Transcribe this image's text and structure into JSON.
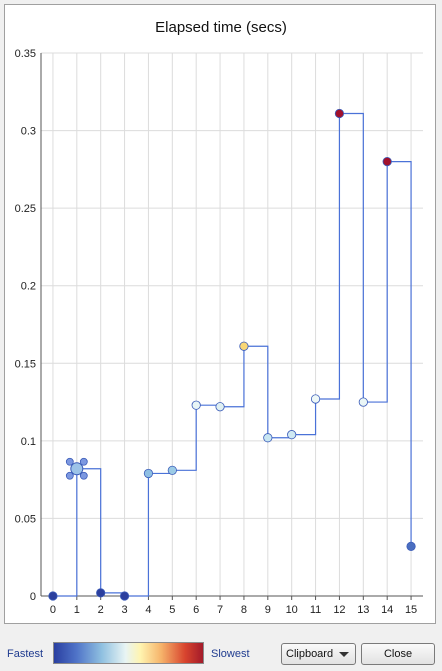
{
  "chart_data": {
    "type": "line",
    "title": "Elapsed time (secs)",
    "xlabel": "",
    "ylabel": "",
    "xlim": [
      -0.5,
      15.5
    ],
    "ylim": [
      0,
      0.35
    ],
    "x_ticks": [
      0,
      1,
      2,
      3,
      4,
      5,
      6,
      7,
      8,
      9,
      10,
      11,
      12,
      13,
      14,
      15
    ],
    "y_ticks": [
      0,
      0.05,
      0.1,
      0.15,
      0.2,
      0.25,
      0.3,
      0.35
    ],
    "y_tick_labels": [
      "0",
      "0.05",
      "0.1",
      "0.15",
      "0.2",
      "0.25",
      "0.3",
      "0.35"
    ],
    "grid": true,
    "line_style": "step",
    "series_color": "#4a72d8",
    "points": [
      {
        "x": 0,
        "y": 0.0,
        "color": "#2b3f9e"
      },
      {
        "x": 1,
        "y": 0.082,
        "color": "#9cc3e8",
        "selected": true
      },
      {
        "x": 2,
        "y": 0.002,
        "color": "#2b3f9e"
      },
      {
        "x": 3,
        "y": 0.0,
        "color": "#2b3f9e"
      },
      {
        "x": 4,
        "y": 0.079,
        "color": "#8fbfe3"
      },
      {
        "x": 5,
        "y": 0.081,
        "color": "#9ccbe6"
      },
      {
        "x": 6,
        "y": 0.123,
        "color": "#e8f5f6"
      },
      {
        "x": 7,
        "y": 0.122,
        "color": "#dff0f2"
      },
      {
        "x": 8,
        "y": 0.161,
        "color": "#f9d776"
      },
      {
        "x": 9,
        "y": 0.102,
        "color": "#c8e6f2"
      },
      {
        "x": 10,
        "y": 0.104,
        "color": "#cfe9f3"
      },
      {
        "x": 11,
        "y": 0.127,
        "color": "#eef8f7"
      },
      {
        "x": 12,
        "y": 0.311,
        "color": "#a1102c"
      },
      {
        "x": 13,
        "y": 0.125,
        "color": "#eaf6f6"
      },
      {
        "x": 14,
        "y": 0.28,
        "color": "#a1102c"
      },
      {
        "x": 15,
        "y": 0.032,
        "color": "#4a6ec0"
      }
    ]
  },
  "legend": {
    "fastest_label": "Fastest",
    "slowest_label": "Slowest"
  },
  "buttons": {
    "clipboard_label": "Clipboard",
    "close_label": "Close"
  }
}
